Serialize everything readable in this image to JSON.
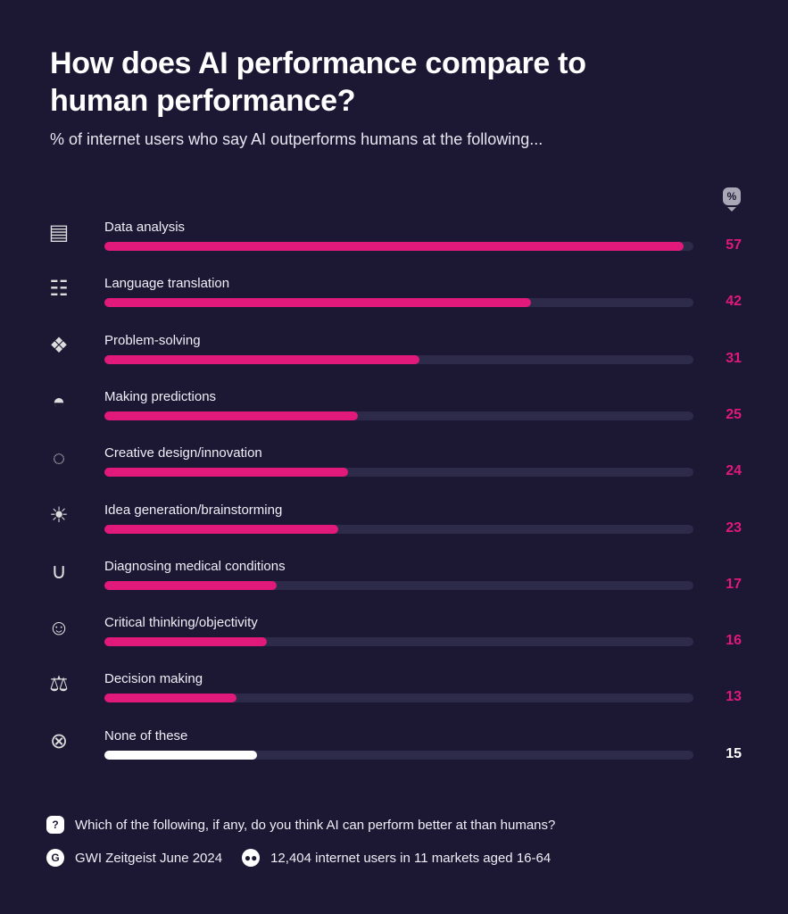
{
  "chart_data": {
    "type": "bar",
    "orientation": "horizontal",
    "title": "How does AI performance compare to human performance?",
    "subtitle": "% of internet users who say AI outperforms humans at the following...",
    "unit_badge": "%",
    "categories": [
      "Data analysis",
      "Language translation",
      "Problem-solving",
      "Making predictions",
      "Creative design/innovation",
      "Idea generation/brainstorming",
      "Diagnosing medical conditions",
      "Critical thinking/objectivity",
      "Decision making",
      "None of these"
    ],
    "values": [
      57,
      42,
      31,
      25,
      24,
      23,
      17,
      16,
      13,
      15
    ],
    "icons": [
      "dashboard-chart-icon",
      "speech-bubble-text-icon",
      "puzzle-icon",
      "crystal-ball-icon",
      "palette-icon",
      "lightbulb-icon",
      "stethoscope-icon",
      "discussion-people-icon",
      "scales-icon",
      "close-circle-icon"
    ],
    "xlim": [
      0,
      58
    ],
    "grid": false,
    "colors": {
      "bar": "#e0197a",
      "none_bar": "#ffffff",
      "track": "#2e2a4a",
      "background": "#1c1733"
    }
  },
  "footer": {
    "question": "Which of the following, if any, do you think AI can perform better at than humans?",
    "source": "GWI Zeitgeist June 2024",
    "sample": "12,404 internet users in 11 markets aged 16-64"
  }
}
